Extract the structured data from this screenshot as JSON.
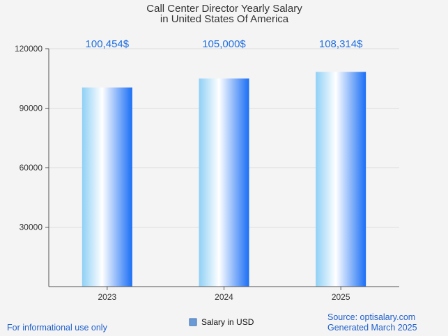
{
  "chart_data": {
    "type": "bar",
    "title": "Call Center Director Yearly Salary",
    "subtitle": "in United States Of America",
    "categories": [
      "2023",
      "2024",
      "2025"
    ],
    "series": [
      {
        "name": "Salary in USD",
        "values": [
          100454,
          105000,
          108314
        ]
      }
    ],
    "data_labels": [
      "100,454$",
      "105,000$",
      "108,314$"
    ],
    "yticks": [
      30000,
      60000,
      90000,
      120000
    ],
    "ylim": [
      0,
      120000
    ],
    "grid": true,
    "legend_position": "bottom-center",
    "colors": {
      "bar_edge": "#1a6ef5",
      "bar_mid": "#ffffff",
      "bar_left": "#8fd0f5",
      "label": "#1f6fe0",
      "grid": "#dddddd",
      "axis": "#555555"
    }
  },
  "footer": {
    "disclaimer": "For informational use only",
    "source": "Source: optisalary.com",
    "generated": "Generated March 2025"
  }
}
